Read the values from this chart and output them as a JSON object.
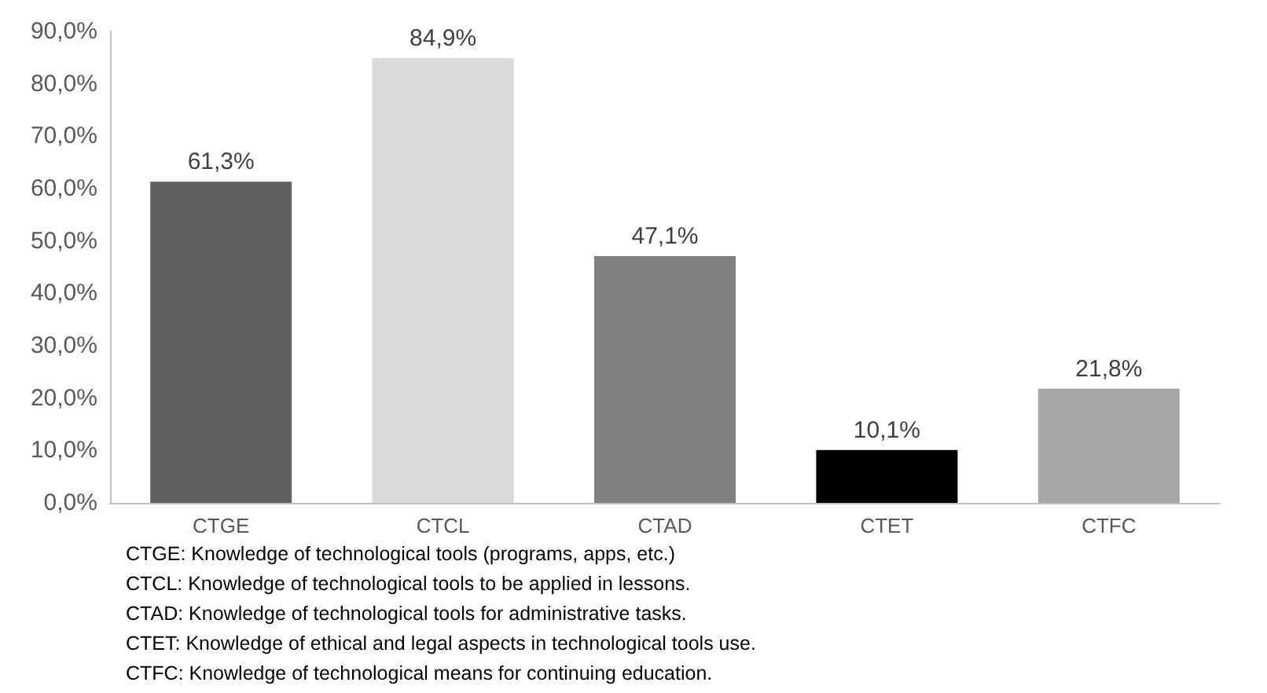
{
  "chart_data": {
    "type": "bar",
    "categories": [
      "CTGE",
      "CTCL",
      "CTAD",
      "CTET",
      "CTFC"
    ],
    "values": [
      61.3,
      84.9,
      47.1,
      10.1,
      21.8
    ],
    "colors": [
      "#5f5f5f",
      "#d9d9d9",
      "#7f7f7f",
      "#000000",
      "#a6a6a6"
    ],
    "value_labels": [
      "61,3%",
      "84,9%",
      "47,1%",
      "10,1%",
      "21,8%"
    ],
    "ylim": [
      0,
      90
    ],
    "yticks": [
      {
        "value": 0,
        "label": "0,0%"
      },
      {
        "value": 10,
        "label": "10,0%"
      },
      {
        "value": 20,
        "label": "20,0%"
      },
      {
        "value": 30,
        "label": "30,0%"
      },
      {
        "value": 40,
        "label": "40,0%"
      },
      {
        "value": 50,
        "label": "50,0%"
      },
      {
        "value": 60,
        "label": "60,0%"
      },
      {
        "value": 70,
        "label": "70,0%"
      },
      {
        "value": 80,
        "label": "80,0%"
      },
      {
        "value": 90,
        "label": "90,0%"
      }
    ],
    "grid": false,
    "annotations": [
      "CTGE: Knowledge of technological tools (programs, apps, etc.)",
      "CTCL: Knowledge of technological tools to be applied in lessons.",
      "CTAD: Knowledge of technological tools for administrative tasks.",
      "CTET: Knowledge of ethical and legal aspects in technological tools use.",
      "CTFC: Knowledge of technological means for continuing education."
    ]
  }
}
